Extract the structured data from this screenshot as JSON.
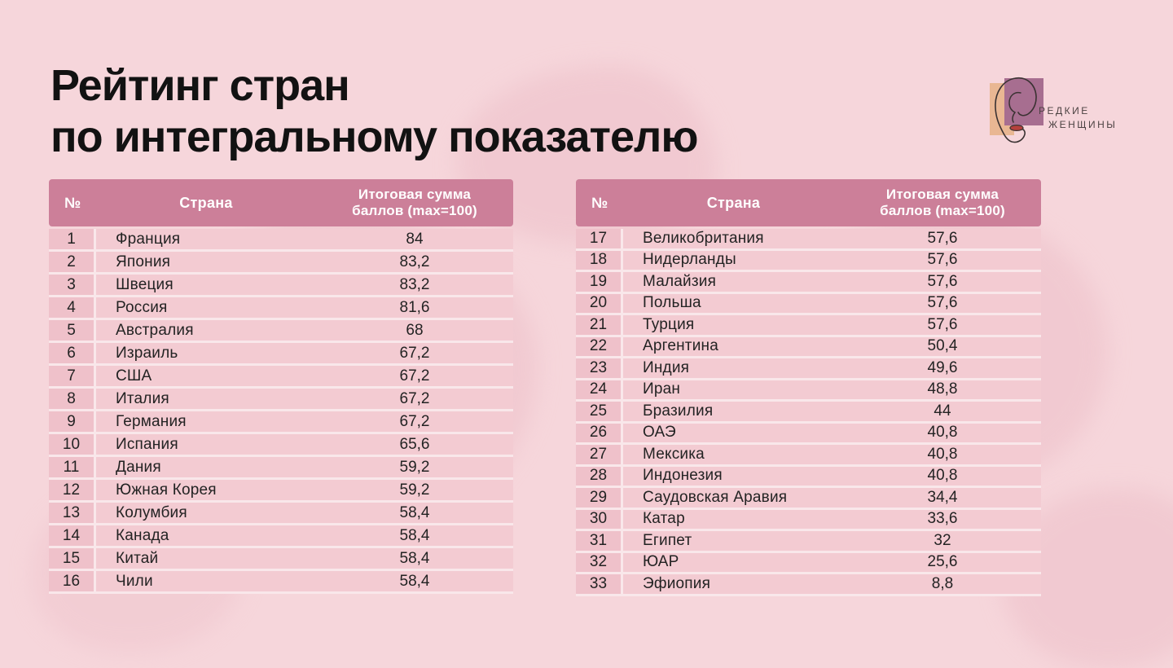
{
  "title": {
    "line1": "Рейтинг стран",
    "line2": "по интегральному показателю"
  },
  "logo": {
    "line1": "РЕДКИЕ",
    "line2": "ЖЕНЩИНЫ"
  },
  "table": {
    "headers": {
      "num": "№",
      "country": "Страна",
      "score_line1": "Итоговая сумма",
      "score_line2": "баллов (max=100)"
    }
  },
  "left_rows": [
    {
      "num": "1",
      "country": "Франция",
      "score": "84"
    },
    {
      "num": "2",
      "country": "Япония",
      "score": "83,2"
    },
    {
      "num": "3",
      "country": "Швеция",
      "score": "83,2"
    },
    {
      "num": "4",
      "country": "Россия",
      "score": "81,6"
    },
    {
      "num": "5",
      "country": "Австралия",
      "score": "68"
    },
    {
      "num": "6",
      "country": "Израиль",
      "score": "67,2"
    },
    {
      "num": "7",
      "country": "США",
      "score": "67,2"
    },
    {
      "num": "8",
      "country": "Италия",
      "score": "67,2"
    },
    {
      "num": "9",
      "country": "Германия",
      "score": "67,2"
    },
    {
      "num": "10",
      "country": "Испания",
      "score": "65,6"
    },
    {
      "num": "11",
      "country": "Дания",
      "score": "59,2"
    },
    {
      "num": "12",
      "country": "Южная Корея",
      "score": "59,2"
    },
    {
      "num": "13",
      "country": "Колумбия",
      "score": "58,4"
    },
    {
      "num": "14",
      "country": "Канада",
      "score": "58,4"
    },
    {
      "num": "15",
      "country": "Китай",
      "score": "58,4"
    },
    {
      "num": "16",
      "country": "Чили",
      "score": "58,4"
    }
  ],
  "right_rows": [
    {
      "num": "17",
      "country": "Великобритания",
      "score": "57,6"
    },
    {
      "num": "18",
      "country": "Нидерланды",
      "score": "57,6"
    },
    {
      "num": "19",
      "country": "Малайзия",
      "score": "57,6"
    },
    {
      "num": "20",
      "country": "Польша",
      "score": "57,6"
    },
    {
      "num": "21",
      "country": "Турция",
      "score": "57,6"
    },
    {
      "num": "22",
      "country": "Аргентина",
      "score": "50,4"
    },
    {
      "num": "23",
      "country": "Индия",
      "score": "49,6"
    },
    {
      "num": "24",
      "country": "Иран",
      "score": "48,8"
    },
    {
      "num": "25",
      "country": "Бразилия",
      "score": "44"
    },
    {
      "num": "26",
      "country": "ОАЭ",
      "score": "40,8"
    },
    {
      "num": "27",
      "country": "Мексика",
      "score": "40,8"
    },
    {
      "num": "28",
      "country": "Индонезия",
      "score": "40,8"
    },
    {
      "num": "29",
      "country": "Саудовская Аравия",
      "score": "34,4"
    },
    {
      "num": "30",
      "country": "Катар",
      "score": "33,6"
    },
    {
      "num": "31",
      "country": "Египет",
      "score": "32"
    },
    {
      "num": "32",
      "country": "ЮАР",
      "score": "25,6"
    },
    {
      "num": "33",
      "country": "Эфиопия",
      "score": "8,8"
    }
  ],
  "colors": {
    "page_background": "#f6d6db",
    "map_blob": "#edc0c9",
    "header_background": "#cc7f99",
    "header_text": "#ffffff",
    "num_cell_background": "#efc1ca",
    "row_background": "#f3cbd2",
    "row_separator": "#f9e7ea",
    "text": "#232323",
    "logo_peach": "#e9b793",
    "logo_mauve": "#a76e90",
    "logo_lips": "#b5413d"
  },
  "chart_data": {
    "type": "table",
    "title": "Рейтинг стран по интегральному показателю",
    "columns": [
      "№",
      "Страна",
      "Итоговая сумма баллов (max=100)"
    ],
    "score_max": 100,
    "rows": [
      [
        1,
        "Франция",
        84
      ],
      [
        2,
        "Япония",
        83.2
      ],
      [
        3,
        "Швеция",
        83.2
      ],
      [
        4,
        "Россия",
        81.6
      ],
      [
        5,
        "Австралия",
        68
      ],
      [
        6,
        "Израиль",
        67.2
      ],
      [
        7,
        "США",
        67.2
      ],
      [
        8,
        "Италия",
        67.2
      ],
      [
        9,
        "Германия",
        67.2
      ],
      [
        10,
        "Испания",
        65.6
      ],
      [
        11,
        "Дания",
        59.2
      ],
      [
        12,
        "Южная Корея",
        59.2
      ],
      [
        13,
        "Колумбия",
        58.4
      ],
      [
        14,
        "Канада",
        58.4
      ],
      [
        15,
        "Китай",
        58.4
      ],
      [
        16,
        "Чили",
        58.4
      ],
      [
        17,
        "Великобритания",
        57.6
      ],
      [
        18,
        "Нидерланды",
        57.6
      ],
      [
        19,
        "Малайзия",
        57.6
      ],
      [
        20,
        "Польша",
        57.6
      ],
      [
        21,
        "Турция",
        57.6
      ],
      [
        22,
        "Аргентина",
        50.4
      ],
      [
        23,
        "Индия",
        49.6
      ],
      [
        24,
        "Иран",
        48.8
      ],
      [
        25,
        "Бразилия",
        44
      ],
      [
        26,
        "ОАЭ",
        40.8
      ],
      [
        27,
        "Мексика",
        40.8
      ],
      [
        28,
        "Индонезия",
        40.8
      ],
      [
        29,
        "Саудовская Аравия",
        34.4
      ],
      [
        30,
        "Катар",
        33.6
      ],
      [
        31,
        "Египет",
        32
      ],
      [
        32,
        "ЮАР",
        25.6
      ],
      [
        33,
        "Эфиопия",
        8.8
      ]
    ]
  }
}
